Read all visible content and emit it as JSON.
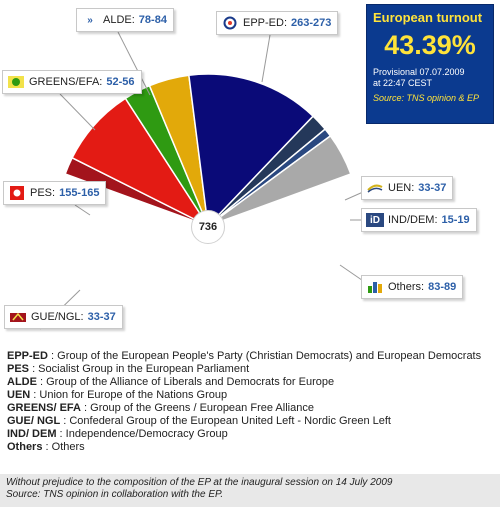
{
  "chart_data": {
    "type": "pie",
    "subtype": "semicircle-parliament",
    "total_seats": "736",
    "segments": [
      {
        "code": "GUE/NGL",
        "label": "GUE/NGL:",
        "range": "33-37",
        "value": 35,
        "color": "#a3141c"
      },
      {
        "code": "PES",
        "label": "PES:",
        "range": "155-165",
        "value": 160,
        "color": "#e31b14"
      },
      {
        "code": "GREENS/EFA",
        "label": "GREENS/EFA:",
        "range": "52-56",
        "value": 54,
        "color": "#2f9a12"
      },
      {
        "code": "ALDE",
        "label": "ALDE:",
        "range": "78-84",
        "value": 81,
        "color": "#e2a90a"
      },
      {
        "code": "EPP-ED",
        "label": "EPP-ED:",
        "range": "263-273",
        "value": 268,
        "color": "#0a0a78"
      },
      {
        "code": "UEN",
        "label": "UEN:",
        "range": "33-37",
        "value": 35,
        "color": "#24385a"
      },
      {
        "code": "IND/DEM",
        "label": "IND/DEM:",
        "range": "15-19",
        "value": 17,
        "color": "#2a4880"
      },
      {
        "code": "Others",
        "label": "Others:",
        "range": "83-89",
        "value": 86,
        "color": "#a9a9a9"
      }
    ]
  },
  "turnout": {
    "title": "European turnout",
    "percent": "43.39%",
    "provisional": "Provisional 07.07.2009",
    "time": "at 22:47 CEST",
    "source": "Source: TNS opinion & EP"
  },
  "icons": {
    "ALDE": "alde-logo-icon",
    "EPP-ED": "epp-logo-icon",
    "GREENS/EFA": "greens-logo-icon",
    "PES": "pes-logo-icon",
    "UEN": "uen-logo-icon",
    "IND/DEM": "inddem-logo-icon",
    "Others": "others-icon",
    "GUE/NGL": "gue-logo-icon"
  },
  "legend": [
    {
      "abbr": "EPP-ED",
      "desc": " : Group of the European People's Party (Christian Democrats) and European Democrats"
    },
    {
      "abbr": "PES",
      "desc": " : Socialist Group in the European Parliament"
    },
    {
      "abbr": "ALDE",
      "desc": " : Group of the Alliance of Liberals and Democrats for Europe"
    },
    {
      "abbr": "UEN",
      "desc": " : Union for Europe of the Nations Group"
    },
    {
      "abbr": "GREENS/ EFA",
      "desc": " : Group of the Greens / European Free Alliance"
    },
    {
      "abbr": "GUE/ NGL",
      "desc": " : Confederal Group of the European United Left - Nordic Green Left"
    },
    {
      "abbr": "IND/ DEM",
      "desc": " : Independence/Democracy Group"
    },
    {
      "abbr": "Others",
      "desc": " : Others"
    }
  ],
  "footer": {
    "line1": "Without prejudice to the composition of the EP at the inaugural session on 14 July 2009",
    "line2": "Source: TNS opinion in collaboration with the EP."
  }
}
